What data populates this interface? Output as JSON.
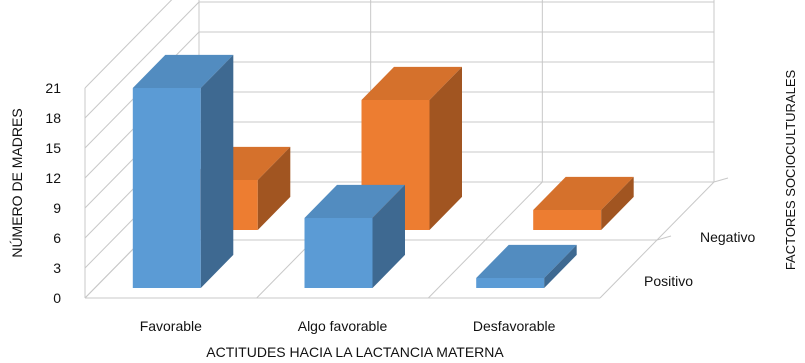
{
  "chart_data": {
    "type": "bar",
    "categories": [
      "Favorable",
      "Algo favorable",
      "Desfavorable"
    ],
    "series": [
      {
        "name": "Positivo",
        "values": [
          20,
          7,
          1
        ],
        "color": "#5b9bd5"
      },
      {
        "name": "Negativo",
        "values": [
          5,
          13,
          2
        ],
        "color": "#ed7d31"
      }
    ],
    "ylabel": "NÚMERO DE MADRES",
    "xlabel": "ACTITUDES HACIA LA LACTANCIA MATERNA",
    "zlabel": "FACTORES SOCIOCULTURALES",
    "ylim": [
      0,
      21
    ],
    "yticks": [
      0,
      3,
      6,
      9,
      12,
      15,
      18,
      21
    ],
    "grid": true,
    "legend": "none"
  }
}
